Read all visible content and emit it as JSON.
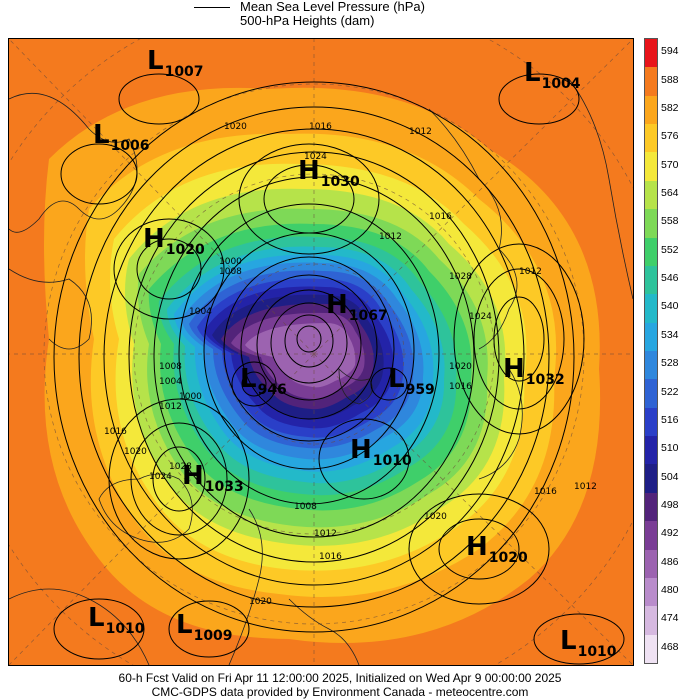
{
  "legend": {
    "line1": "Mean Sea Level Pressure (hPa)",
    "line2": "500-hPa Heights (dam)"
  },
  "colorbar": {
    "labels": [
      "594",
      "588",
      "582",
      "576",
      "570",
      "564",
      "558",
      "552",
      "546",
      "540",
      "534",
      "528",
      "522",
      "516",
      "510",
      "504",
      "498",
      "492",
      "486",
      "480",
      "474",
      "468"
    ],
    "colors": [
      "#e8141a",
      "#f47a1e",
      "#fba61c",
      "#fdc926",
      "#f4e83a",
      "#b6e34a",
      "#7ed957",
      "#3fcf6a",
      "#2ec39b",
      "#23b9c9",
      "#27a6e0",
      "#2f87dd",
      "#2f63d4",
      "#2a3fc8",
      "#2323a8",
      "#1e1e86",
      "#52237a",
      "#7a3d95",
      "#9c63b0",
      "#b98ccb",
      "#d6b9e0",
      "#efe2f3"
    ]
  },
  "systems": [
    {
      "type": "L",
      "value": "1007"
    },
    {
      "type": "L",
      "value": "1004"
    },
    {
      "type": "L",
      "value": "1006"
    },
    {
      "type": "H",
      "value": "1030"
    },
    {
      "type": "H",
      "value": "1020"
    },
    {
      "type": "H",
      "value": "1067"
    },
    {
      "type": "L",
      "value": "946"
    },
    {
      "type": "L",
      "value": "959"
    },
    {
      "type": "H",
      "value": "1032"
    },
    {
      "type": "H",
      "value": "1010"
    },
    {
      "type": "H",
      "value": "1033"
    },
    {
      "type": "H",
      "value": "1020"
    },
    {
      "type": "L",
      "value": "1010"
    },
    {
      "type": "L",
      "value": "1009"
    },
    {
      "type": "L",
      "value": "1010"
    }
  ],
  "isobar_labels": [
    "1020",
    "1016",
    "1012",
    "1024",
    "1016",
    "1012",
    "1008",
    "1004",
    "1000",
    "1012",
    "1028",
    "1024",
    "1020",
    "1016",
    "1008",
    "1004",
    "1000",
    "1012",
    "1016",
    "1020",
    "1024",
    "1028",
    "1008",
    "1012",
    "1016",
    "1020",
    "1016",
    "1012",
    "1020"
  ],
  "footer": {
    "line1": "60-h Fcst Valid on Fri Apr 11 12:00:00 2025, Initialized on Wed Apr  9 00:00:00 2025",
    "line2": "CMC-GDPS data provided by Environment Canada - meteocentre.com"
  }
}
